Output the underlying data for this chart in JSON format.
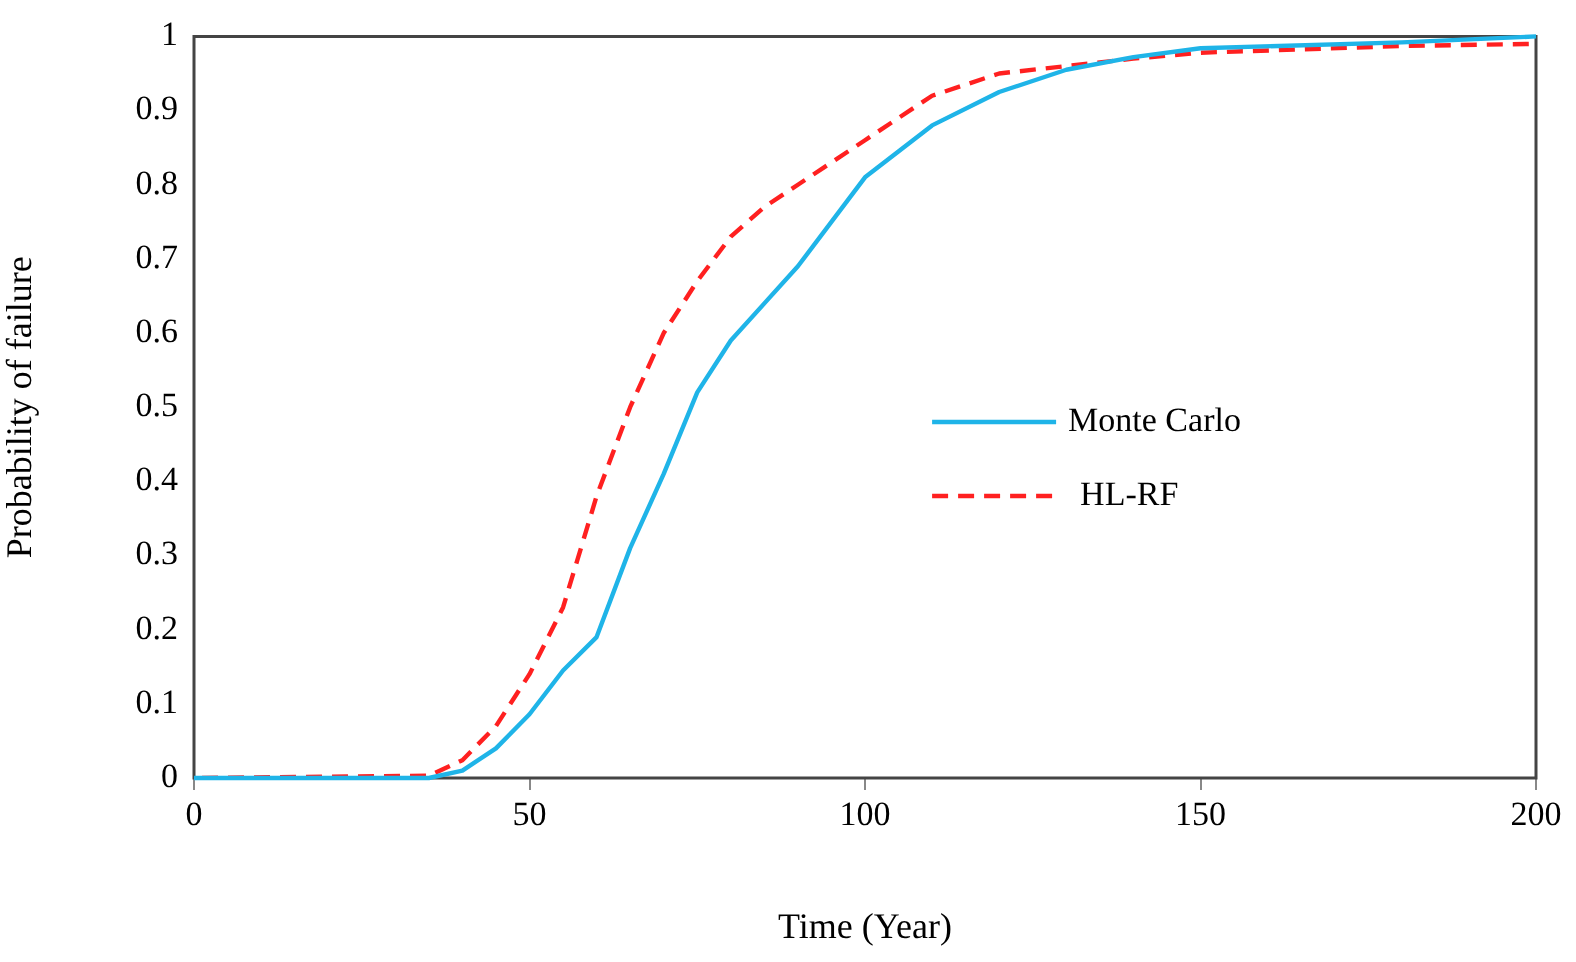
{
  "chart_data": {
    "type": "line",
    "xlabel": "Time (Year)",
    "ylabel": "Probability of failure",
    "xlim": [
      0,
      200
    ],
    "xticks": [
      0,
      50,
      100,
      150,
      200
    ],
    "ylim": [
      0,
      1
    ],
    "yticks": [
      0,
      0.1,
      0.2,
      0.3,
      0.4,
      0.5,
      0.6,
      0.7,
      0.8,
      0.9,
      1
    ],
    "grid": false,
    "legend": "right",
    "marker": "none",
    "series": [
      {
        "name": "Monte Carlo",
        "color": "#1fb4e8",
        "line_style": "solid",
        "x": [
          0,
          35,
          40,
          45,
          50,
          55,
          60,
          65,
          70,
          75,
          80,
          85,
          90,
          100,
          110,
          120,
          130,
          140,
          150,
          180,
          200
        ],
        "values": [
          0,
          0,
          0.01,
          0.04,
          0.086,
          0.145,
          0.19,
          0.31,
          0.41,
          0.52,
          0.59,
          0.64,
          0.69,
          0.81,
          0.88,
          0.925,
          0.955,
          0.972,
          0.984,
          0.992,
          1
        ]
      },
      {
        "name": "HL-RF",
        "color": "#ff2020",
        "line_style": "dashed",
        "x": [
          0,
          35,
          40,
          45,
          50,
          55,
          60,
          65,
          70,
          75,
          80,
          85,
          90,
          100,
          110,
          120,
          130,
          140,
          150,
          180,
          200
        ],
        "values": [
          0,
          0.003,
          0.024,
          0.07,
          0.14,
          0.23,
          0.38,
          0.5,
          0.6,
          0.67,
          0.73,
          0.77,
          0.8,
          0.86,
          0.92,
          0.95,
          0.96,
          0.97,
          0.978,
          0.987,
          0.99
        ]
      }
    ]
  }
}
